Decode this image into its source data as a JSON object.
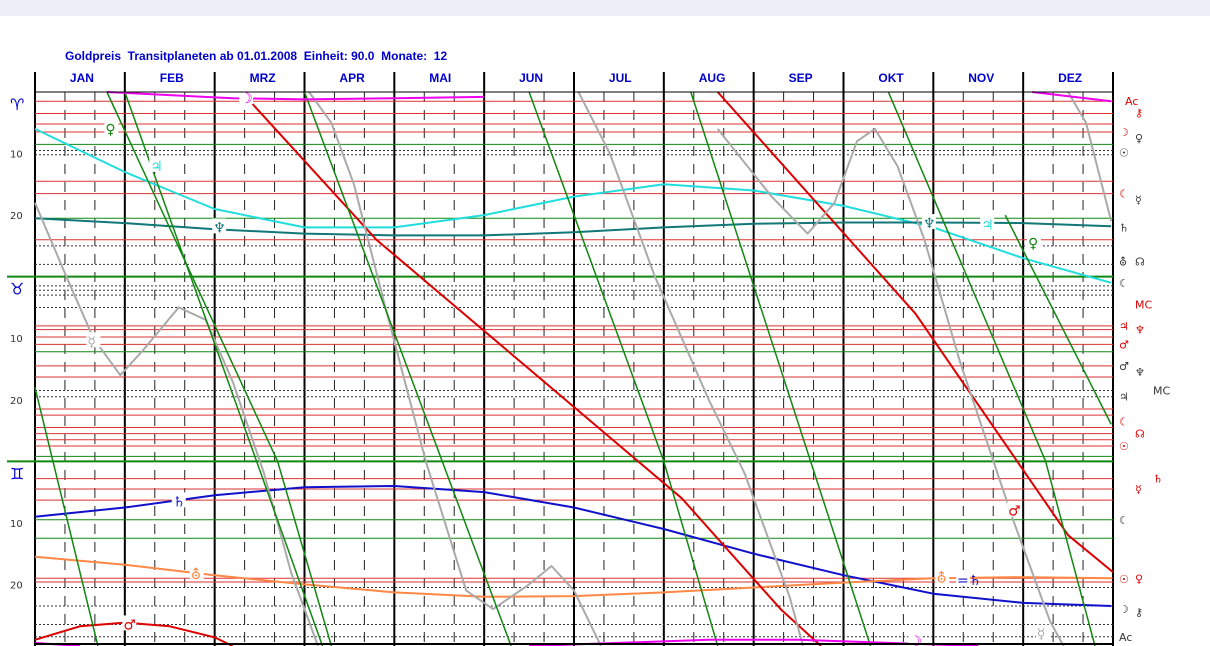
{
  "chart_data": {
    "type": "line",
    "title": "Goldpreis  Transitplaneten ab 01.01.2008  Einheit: 90.0  Monate:  12",
    "months": [
      "JAN",
      "FEB",
      "MRZ",
      "APR",
      "MAI",
      "JUN",
      "JUL",
      "AUG",
      "SEP",
      "OKT",
      "NOV",
      "DEZ"
    ],
    "x_range": [
      0,
      12
    ],
    "y_range": [
      0,
      90
    ],
    "sign_sections": [
      {
        "glyph": "♈",
        "start": 0
      },
      {
        "glyph": "♉",
        "start": 30
      },
      {
        "glyph": "♊",
        "start": 60
      }
    ],
    "degree_labels": [
      "10",
      "20"
    ],
    "series": [
      {
        "name": "♃",
        "color": "#22dddd",
        "width": 2,
        "points": [
          [
            0,
            6
          ],
          [
            1,
            13
          ],
          [
            2,
            19
          ],
          [
            3,
            22
          ],
          [
            4,
            22
          ],
          [
            5,
            20
          ],
          [
            6,
            17
          ],
          [
            7,
            15
          ],
          [
            8,
            16
          ],
          [
            9,
            18.5
          ],
          [
            10,
            22
          ],
          [
            11,
            27
          ],
          [
            11.98,
            31
          ]
        ]
      },
      {
        "name": "♆",
        "color": "#117777",
        "width": 2,
        "points": [
          [
            0,
            20.5
          ],
          [
            1,
            21.3
          ],
          [
            2,
            22.3
          ],
          [
            3,
            23
          ],
          [
            4,
            23.3
          ],
          [
            5,
            23.3
          ],
          [
            6,
            22.8
          ],
          [
            7,
            22
          ],
          [
            8,
            21.4
          ],
          [
            9,
            21.2
          ],
          [
            10,
            21.2
          ],
          [
            11,
            21.3
          ],
          [
            11.98,
            21.8
          ]
        ]
      },
      {
        "name": "♄",
        "color": "#1111cc",
        "width": 2,
        "points": [
          [
            0,
            69
          ],
          [
            1,
            67.5
          ],
          [
            2,
            65.5
          ],
          [
            3,
            64.2
          ],
          [
            4,
            64
          ],
          [
            5,
            65
          ],
          [
            6,
            67.5
          ],
          [
            7,
            71
          ],
          [
            8,
            75
          ],
          [
            9,
            78.5
          ],
          [
            10,
            81.5
          ],
          [
            11,
            83
          ],
          [
            11.98,
            83.5
          ]
        ]
      },
      {
        "name": "⛢",
        "color": "#ff8844",
        "width": 2,
        "points": [
          [
            0,
            75.5
          ],
          [
            1,
            76.8
          ],
          [
            2,
            78.5
          ],
          [
            3,
            80
          ],
          [
            4,
            81.3
          ],
          [
            5,
            82
          ],
          [
            6,
            81.9
          ],
          [
            7,
            81.3
          ],
          [
            8,
            80.5
          ],
          [
            9,
            79.7
          ],
          [
            10,
            79
          ],
          [
            11,
            78.8
          ],
          [
            11.98,
            79
          ]
        ]
      },
      {
        "name": "♂",
        "color": "#dd0000",
        "width": 2,
        "points": [
          [
            0,
            89
          ],
          [
            0.5,
            86.8
          ],
          [
            1,
            86.2
          ],
          [
            1.5,
            86.8
          ],
          [
            2,
            88.6
          ],
          [
            2.2,
            90
          ]
        ]
      },
      {
        "name": "♂",
        "color": "#dd0000",
        "width": 2,
        "points": [
          [
            2.3,
            0
          ],
          [
            3.8,
            24
          ],
          [
            5.5,
            45
          ],
          [
            7.2,
            66
          ],
          [
            8.3,
            84
          ],
          [
            8.75,
            90
          ]
        ]
      },
      {
        "name": "♂",
        "color": "#dd0000",
        "width": 2,
        "points": [
          [
            7.6,
            0
          ],
          [
            9.8,
            36
          ],
          [
            11.5,
            72
          ],
          [
            12,
            78
          ]
        ]
      },
      {
        "name": "☿",
        "color": "#aaaaaa",
        "width": 2,
        "points": [
          [
            0,
            18
          ],
          [
            0.35,
            30
          ],
          [
            0.65,
            40
          ],
          [
            0.95,
            46
          ],
          [
            1.2,
            42
          ],
          [
            1.6,
            35
          ],
          [
            1.9,
            37
          ],
          [
            2.2,
            47
          ],
          [
            2.55,
            62
          ],
          [
            2.85,
            78
          ],
          [
            3.15,
            90
          ]
        ]
      },
      {
        "name": "☿",
        "color": "#aaaaaa",
        "width": 2,
        "points": [
          [
            3.05,
            0
          ],
          [
            3.3,
            5
          ],
          [
            3.55,
            15
          ],
          [
            3.9,
            35
          ],
          [
            4.35,
            60
          ],
          [
            4.8,
            81
          ],
          [
            5.1,
            84
          ],
          [
            5.5,
            80
          ],
          [
            5.75,
            77
          ],
          [
            6.0,
            81
          ],
          [
            6.3,
            90
          ]
        ]
      },
      {
        "name": "☿",
        "color": "#aaaaaa",
        "width": 2,
        "points": [
          [
            6.05,
            0
          ],
          [
            6.4,
            10
          ],
          [
            6.9,
            30
          ],
          [
            7.5,
            50
          ],
          [
            7.9,
            62
          ],
          [
            8.2,
            74
          ],
          [
            8.4,
            82
          ],
          [
            8.55,
            90
          ]
        ]
      },
      {
        "name": "☿",
        "color": "#aaaaaa",
        "width": 2,
        "points": [
          [
            7.6,
            6
          ],
          [
            8.2,
            17
          ],
          [
            8.6,
            23
          ],
          [
            8.9,
            18
          ],
          [
            9.15,
            8
          ],
          [
            9.35,
            6
          ],
          [
            9.6,
            12
          ],
          [
            9.9,
            24
          ],
          [
            10.3,
            44
          ],
          [
            10.9,
            70
          ],
          [
            11.3,
            86
          ],
          [
            11.45,
            90
          ]
        ]
      },
      {
        "name": "☿",
        "color": "#aaaaaa",
        "width": 2,
        "points": [
          [
            11.5,
            0
          ],
          [
            11.7,
            5
          ],
          [
            11.98,
            21
          ]
        ]
      },
      {
        "name": "☉",
        "color": "#118811",
        "width": 1.5,
        "points": [
          [
            0.8,
            0
          ],
          [
            2.7,
            60
          ],
          [
            3.3,
            90
          ]
        ]
      },
      {
        "name": "☉",
        "color": "#118811",
        "width": 1.5,
        "points": [
          [
            5.5,
            0
          ],
          [
            7.0,
            60
          ],
          [
            7.6,
            90
          ]
        ]
      },
      {
        "name": "☉",
        "color": "#118811",
        "width": 1.5,
        "points": [
          [
            9.5,
            0
          ],
          [
            11.25,
            60
          ],
          [
            11.8,
            90
          ]
        ]
      },
      {
        "name": "♀",
        "color": "#118811",
        "width": 1.5,
        "points": [
          [
            0,
            48
          ],
          [
            0.7,
            90
          ]
        ]
      },
      {
        "name": "♀",
        "color": "#118811",
        "width": 1.5,
        "points": [
          [
            1.0,
            0
          ],
          [
            3.2,
            90
          ]
        ]
      },
      {
        "name": "♀",
        "color": "#118811",
        "width": 1.5,
        "points": [
          [
            3.0,
            0
          ],
          [
            5.3,
            90
          ]
        ]
      },
      {
        "name": "♀",
        "color": "#118811",
        "width": 1.5,
        "points": [
          [
            7.3,
            0
          ],
          [
            9.3,
            90
          ]
        ]
      },
      {
        "name": "♀",
        "color": "#118811",
        "width": 1.5,
        "points": [
          [
            10.8,
            20
          ],
          [
            11.98,
            54
          ]
        ]
      },
      {
        "name": "⚷",
        "color": "#ee00ee",
        "width": 2,
        "points": [
          [
            0.8,
            0
          ],
          [
            2.2,
            1
          ],
          [
            3,
            1.2
          ],
          [
            4,
            1
          ],
          [
            5,
            0.8
          ]
        ]
      },
      {
        "name": "⚷",
        "color": "#ee00ee",
        "width": 2,
        "points": [
          [
            11.1,
            0
          ],
          [
            11.98,
            1.5
          ]
        ]
      },
      {
        "name": "⚷",
        "color": "#ee00ee",
        "width": 2,
        "points": [
          [
            0,
            89.5
          ],
          [
            0.5,
            90
          ]
        ]
      },
      {
        "name": "⚷",
        "color": "#ee00ee",
        "width": 2,
        "points": [
          [
            5.5,
            90
          ],
          [
            7.5,
            89
          ],
          [
            8.5,
            89
          ],
          [
            9.5,
            89.5
          ],
          [
            10.5,
            90
          ]
        ]
      }
    ],
    "series_labels": [
      {
        "text": "♀",
        "x": 0.85,
        "y": 6,
        "color": "#118811"
      },
      {
        "text": "♃",
        "x": 1.35,
        "y": 12,
        "color": "#22dddd"
      },
      {
        "text": "☽",
        "x": 2.35,
        "y": 1,
        "color": "#ee00ee"
      },
      {
        "text": "♃",
        "x": 10.6,
        "y": 21.5,
        "color": "#22dddd"
      },
      {
        "text": "♀",
        "x": 11.12,
        "y": 24.5,
        "color": "#118811"
      },
      {
        "text": "☿",
        "x": 0.65,
        "y": 40.5,
        "color": "#aaaaaa"
      },
      {
        "text": "♆",
        "x": 2.05,
        "y": 22,
        "color": "#117777"
      },
      {
        "text": "♆",
        "x": 9.95,
        "y": 21.3,
        "color": "#117777"
      },
      {
        "text": "♄",
        "x": 1.6,
        "y": 66.5,
        "color": "#1111cc"
      },
      {
        "text": "♂",
        "x": 10.9,
        "y": 68,
        "color": "#dd0000"
      },
      {
        "text": "⛢",
        "x": 1.8,
        "y": 78.3,
        "color": "#ff8844"
      },
      {
        "text": "⛢",
        "x": 10.1,
        "y": 78.9,
        "color": "#ff8844"
      },
      {
        "text": "=♄",
        "x": 10.33,
        "y": 79.3,
        "color": "#1111cc"
      },
      {
        "text": "♂",
        "x": 1.05,
        "y": 86.5,
        "color": "#dd0000"
      },
      {
        "text": "☽",
        "x": 9.8,
        "y": 89.2,
        "color": "#ee00ee"
      },
      {
        "text": "☿",
        "x": 11.22,
        "y": 88,
        "color": "#aaaaaa"
      }
    ],
    "horizontal_lines": [
      {
        "y": 1.5,
        "color": "#dd3333"
      },
      {
        "y": 3.5,
        "color": "#dd3333"
      },
      {
        "y": 5.2,
        "color": "#dd3333"
      },
      {
        "y": 6.5,
        "color": "#dd3333"
      },
      {
        "y": 8.5,
        "color": "#118811"
      },
      {
        "y": 9.5,
        "color": "#333333",
        "style": "dot"
      },
      {
        "y": 10.2,
        "color": "#333333",
        "style": "dot"
      },
      {
        "y": 14.5,
        "color": "#dd3333"
      },
      {
        "y": 16.5,
        "color": "#dd3333"
      },
      {
        "y": 20.5,
        "color": "#118811"
      },
      {
        "y": 24,
        "color": "#dd3333"
      },
      {
        "y": 25,
        "color": "#333333",
        "style": "dot"
      },
      {
        "y": 28,
        "color": "#333333",
        "style": "dot"
      },
      {
        "y": 30,
        "color": "#118811"
      },
      {
        "y": 31.5,
        "color": "#333333",
        "style": "dot"
      },
      {
        "y": 32.2,
        "color": "#333333",
        "style": "dot"
      },
      {
        "y": 33,
        "color": "#333333",
        "style": "dot"
      },
      {
        "y": 35,
        "color": "#333333",
        "style": "dot"
      },
      {
        "y": 38,
        "color": "#dd3333"
      },
      {
        "y": 38.6,
        "color": "#dd3333"
      },
      {
        "y": 39.8,
        "color": "#dd3333"
      },
      {
        "y": 41,
        "color": "#dd3333"
      },
      {
        "y": 42.2,
        "color": "#118811"
      },
      {
        "y": 44.5,
        "color": "#dd3333"
      },
      {
        "y": 46.3,
        "color": "#dd3333"
      },
      {
        "y": 48.5,
        "color": "#333333",
        "style": "dot"
      },
      {
        "y": 49.5,
        "color": "#333333",
        "style": "dot"
      },
      {
        "y": 51.5,
        "color": "#dd3333"
      },
      {
        "y": 52.5,
        "color": "#dd3333"
      },
      {
        "y": 54.5,
        "color": "#dd3333"
      },
      {
        "y": 55.5,
        "color": "#dd3333"
      },
      {
        "y": 56.5,
        "color": "#dd3333"
      },
      {
        "y": 57.5,
        "color": "#dd3333"
      },
      {
        "y": 59.2,
        "color": "#118811"
      },
      {
        "y": 60,
        "color": "#118811"
      },
      {
        "y": 62.8,
        "color": "#dd3333"
      },
      {
        "y": 64.5,
        "color": "#dd3333"
      },
      {
        "y": 66.3,
        "color": "#dd3333"
      },
      {
        "y": 69.5,
        "color": "#118811"
      },
      {
        "y": 72.5,
        "color": "#118811"
      },
      {
        "y": 79,
        "color": "#dd3333"
      },
      {
        "y": 79.6,
        "color": "#dd3333"
      },
      {
        "y": 80.5,
        "color": "#333333",
        "style": "dot"
      },
      {
        "y": 83.5,
        "color": "#333333",
        "style": "dot"
      },
      {
        "y": 86.5,
        "color": "#333333",
        "style": "dot"
      },
      {
        "y": 88.5,
        "color": "#333333",
        "style": "dot"
      }
    ],
    "right_labels": [
      {
        "text": "Ac",
        "y": 1.5,
        "color": "#dd0000",
        "dx": 12
      },
      {
        "text": "⚷",
        "y": 3.3,
        "color": "#dd0000",
        "dx": 22
      },
      {
        "text": "☽",
        "y": 6.5,
        "color": "#dd0000",
        "dx": 6
      },
      {
        "text": "♀",
        "y": 7.5,
        "color": "#333333",
        "dx": 22
      },
      {
        "text": "☉",
        "y": 9.8,
        "color": "#333333",
        "dx": 6
      },
      {
        "text": "☾",
        "y": 16.5,
        "color": "#dd0000",
        "dx": 6
      },
      {
        "text": "☿",
        "y": 17.5,
        "color": "#333333",
        "dx": 22
      },
      {
        "text": "♄",
        "y": 22,
        "color": "#333333",
        "dx": 6
      },
      {
        "text": "⛢",
        "y": 27.5,
        "color": "#333333",
        "dx": 6
      },
      {
        "text": "☊",
        "y": 27.5,
        "color": "#333333",
        "dx": 22
      },
      {
        "text": "☾",
        "y": 31,
        "color": "#333333",
        "dx": 6
      },
      {
        "text": "MC",
        "y": 34.5,
        "color": "#dd0000",
        "dx": 22
      },
      {
        "text": "♃",
        "y": 38,
        "color": "#dd0000",
        "dx": 6
      },
      {
        "text": "♆",
        "y": 38.6,
        "color": "#dd0000",
        "dx": 22
      },
      {
        "text": "♂",
        "y": 41,
        "color": "#dd0000",
        "dx": 6
      },
      {
        "text": "♂",
        "y": 44.5,
        "color": "#333333",
        "dx": 6
      },
      {
        "text": "♆",
        "y": 45.5,
        "color": "#333333",
        "dx": 22
      },
      {
        "text": "♃",
        "y": 49.5,
        "color": "#333333",
        "dx": 6
      },
      {
        "text": "MC",
        "y": 48.5,
        "color": "#333333",
        "dx": 40
      },
      {
        "text": "☾",
        "y": 53.5,
        "color": "#dd0000",
        "dx": 6
      },
      {
        "text": "☊",
        "y": 55.5,
        "color": "#dd0000",
        "dx": 22
      },
      {
        "text": "☉",
        "y": 57.5,
        "color": "#dd0000",
        "dx": 6
      },
      {
        "text": "♄",
        "y": 62.8,
        "color": "#dd0000",
        "dx": 40
      },
      {
        "text": "☿",
        "y": 64.5,
        "color": "#dd0000",
        "dx": 22
      },
      {
        "text": "☾",
        "y": 69.5,
        "color": "#333333",
        "dx": 6
      },
      {
        "text": "☉",
        "y": 79.1,
        "color": "#dd0000",
        "dx": 6
      },
      {
        "text": "♀",
        "y": 79,
        "color": "#dd0000",
        "dx": 22
      },
      {
        "text": "☽",
        "y": 84,
        "color": "#333333",
        "dx": 6
      },
      {
        "text": "⚷",
        "y": 84.5,
        "color": "#333333",
        "dx": 22
      },
      {
        "text": "Ac",
        "y": 88.5,
        "color": "#333333",
        "dx": 6
      }
    ]
  }
}
